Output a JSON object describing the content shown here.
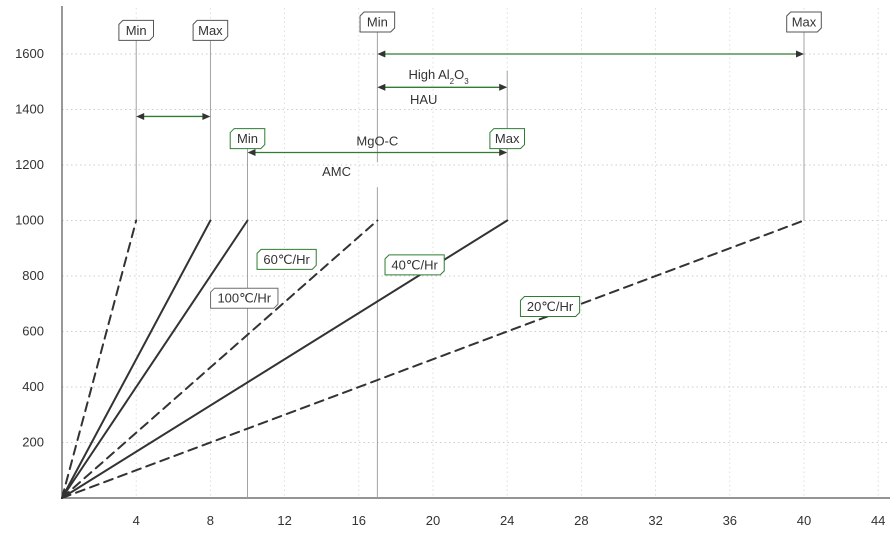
{
  "chart_data": {
    "type": "line",
    "xlim": [
      0,
      44
    ],
    "ylim": [
      0,
      1600
    ],
    "x_ticks": [
      4,
      8,
      12,
      16,
      20,
      24,
      28,
      32,
      36,
      40,
      44
    ],
    "y_ticks": [
      200,
      400,
      600,
      800,
      1000,
      1200,
      1400,
      1600
    ],
    "grid": true,
    "series": [
      {
        "values": [
          [
            0,
            0
          ],
          [
            4,
            1000
          ]
        ],
        "style": "dashed"
      },
      {
        "values": [
          [
            0,
            0
          ],
          [
            8,
            1000
          ]
        ],
        "style": "solid"
      },
      {
        "values": [
          [
            0,
            0
          ],
          [
            10,
            1000
          ]
        ],
        "style": "solid"
      },
      {
        "values": [
          [
            0,
            0
          ],
          [
            17,
            1000
          ]
        ],
        "style": "dashed"
      },
      {
        "values": [
          [
            0,
            0
          ],
          [
            24,
            1000
          ]
        ],
        "style": "solid"
      },
      {
        "values": [
          [
            0,
            0
          ],
          [
            40,
            1000
          ]
        ],
        "style": "dashed"
      }
    ],
    "rate_labels": [
      {
        "text": "100℃/Hr",
        "x": 8.1,
        "y": 720,
        "color": "#6d6d6d"
      },
      {
        "text": "60℃/Hr",
        "x": 10.6,
        "y": 860,
        "color": "#2e7d32"
      },
      {
        "text": "40℃/Hr",
        "x": 17.5,
        "y": 840,
        "color": "#2e7d32"
      },
      {
        "text": "20℃/Hr",
        "x": 24.8,
        "y": 690,
        "color": "#2e7d32"
      }
    ],
    "marker_lines": [
      {
        "x": 4,
        "y1": 1000,
        "y2": 1660
      },
      {
        "x": 8,
        "y1": 1000,
        "y2": 1660
      },
      {
        "x": 10,
        "y1": 0,
        "y2": 1270
      },
      {
        "x": 17,
        "y1": 0,
        "y2": 1120
      },
      {
        "x": 17,
        "y1": 1210,
        "y2": 1690
      },
      {
        "x": 24,
        "y1": 1000,
        "y2": 1540
      },
      {
        "x": 40,
        "y1": 1000,
        "y2": 1690
      }
    ],
    "ranges": [
      {
        "x1": 4,
        "x2": 8,
        "y": 1375
      },
      {
        "x1": 10,
        "x2": 24,
        "y": 1245
      },
      {
        "x1": 17,
        "x2": 24,
        "y": 1480
      },
      {
        "x1": 17,
        "x2": 40,
        "y": 1600
      }
    ],
    "range_labels": [
      {
        "text": "MgO-C",
        "x": 17,
        "y": 1270
      },
      {
        "text": "AMC",
        "x": 14.8,
        "y": 1160
      },
      {
        "text": "HAU",
        "x": 19.5,
        "y": 1420
      }
    ],
    "al2o3_label": {
      "prefix": "High Al",
      "sub1": "2",
      "mid": "O",
      "sub2": "3",
      "x": 20.3,
      "y": 1510
    },
    "flags": [
      {
        "text": "Min",
        "x": 4,
        "y": 1660,
        "color": "#555555"
      },
      {
        "text": "Max",
        "x": 8,
        "y": 1660,
        "color": "#555555"
      },
      {
        "text": "Min",
        "x": 17,
        "y": 1690,
        "color": "#555555"
      },
      {
        "text": "Max",
        "x": 40,
        "y": 1690,
        "color": "#555555"
      },
      {
        "text": "Min",
        "x": 10,
        "y": 1270,
        "color": "#2e7d32"
      },
      {
        "text": "Max",
        "x": 24,
        "y": 1270,
        "color": "#2e7d32"
      }
    ]
  }
}
